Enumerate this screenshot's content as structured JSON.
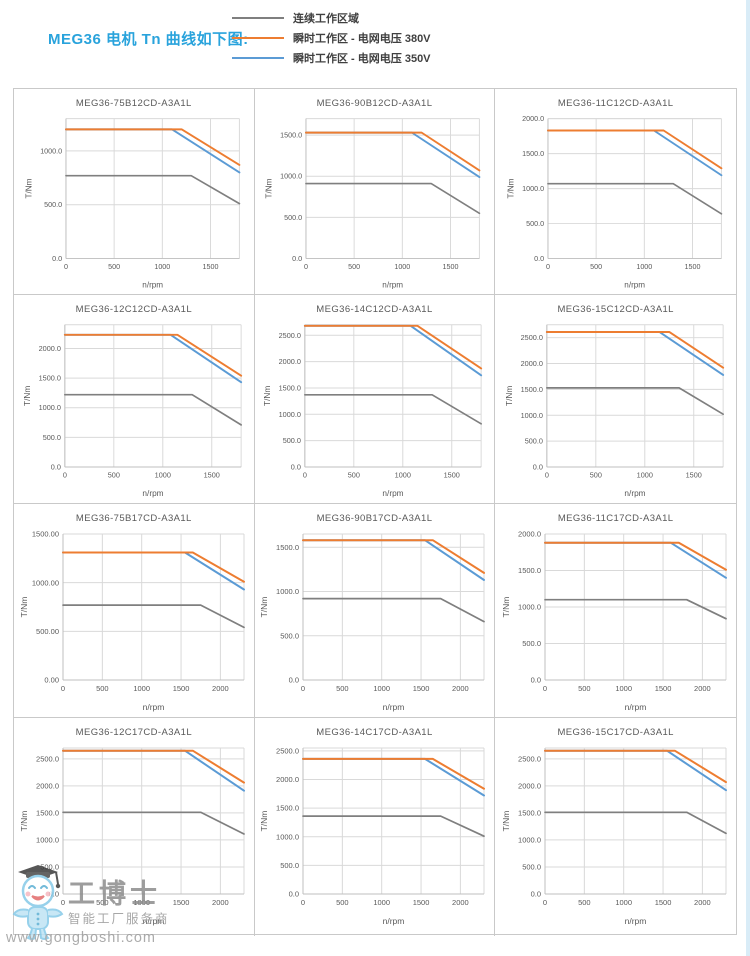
{
  "page": {
    "title": "MEG36 电机 Tn 曲线如下图:",
    "title_color": "#29a3dc"
  },
  "legend": {
    "items": [
      {
        "label": "连续工作区域",
        "color": "#7f7f7f",
        "key": "cont"
      },
      {
        "label": "瞬时工作区 - 电网电压 380V",
        "color": "#ed7d31",
        "key": "v380"
      },
      {
        "label": "瞬时工作区 - 电网电压 350V",
        "color": "#5b9bd5",
        "key": "v350"
      }
    ]
  },
  "watermark": {
    "brand": "工博士",
    "tagline": "智能工厂服务商",
    "url": "www.gongboshi.com"
  },
  "chart_defaults": {
    "type": "line",
    "xlabel": "n/rpm",
    "ylabel": "T/Nm",
    "grid": true,
    "legend_position": "none",
    "colors": {
      "cont": "#7f7f7f",
      "v380": "#ed7d31",
      "v350": "#5b9bd5"
    }
  },
  "chart_data": [
    {
      "type": "line",
      "title": "MEG36-75B12CD-A3A1L",
      "xlabel": "n/rpm",
      "ylabel": "T/Nm",
      "xlim": [
        0,
        1800
      ],
      "ylim": [
        0,
        1300
      ],
      "xticks": [
        0,
        500,
        1000,
        1500
      ],
      "yticks": [
        0,
        500,
        1000
      ],
      "ytick_decimals": 1,
      "series": [
        {
          "key": "cont",
          "name": "连续工作区域",
          "points": [
            [
              0,
              770
            ],
            [
              1300,
              770
            ],
            [
              1800,
              510
            ]
          ]
        },
        {
          "key": "v380",
          "name": "瞬时工作区 - 电网电压 380V",
          "points": [
            [
              0,
              1200
            ],
            [
              1200,
              1200
            ],
            [
              1800,
              870
            ]
          ]
        },
        {
          "key": "v350",
          "name": "瞬时工作区 - 电网电压 350V",
          "points": [
            [
              0,
              1200
            ],
            [
              1100,
              1200
            ],
            [
              1800,
              800
            ]
          ]
        }
      ]
    },
    {
      "type": "line",
      "title": "MEG36-90B12CD-A3A1L",
      "xlabel": "n/rpm",
      "ylabel": "T/Nm",
      "xlim": [
        0,
        1800
      ],
      "ylim": [
        0,
        1700
      ],
      "xticks": [
        0,
        500,
        1000,
        1500
      ],
      "yticks": [
        0,
        500,
        1000,
        1500
      ],
      "ytick_decimals": 1,
      "series": [
        {
          "key": "cont",
          "name": "连续工作区域",
          "points": [
            [
              0,
              910
            ],
            [
              1300,
              910
            ],
            [
              1800,
              550
            ]
          ]
        },
        {
          "key": "v380",
          "name": "瞬时工作区 - 电网电压 380V",
          "points": [
            [
              0,
              1530
            ],
            [
              1200,
              1530
            ],
            [
              1800,
              1070
            ]
          ]
        },
        {
          "key": "v350",
          "name": "瞬时工作区 - 电网电压 350V",
          "points": [
            [
              0,
              1530
            ],
            [
              1100,
              1530
            ],
            [
              1800,
              990
            ]
          ]
        }
      ]
    },
    {
      "type": "line",
      "title": "MEG36-11C12CD-A3A1L",
      "xlabel": "n/rpm",
      "ylabel": "T/Nm",
      "xlim": [
        0,
        1800
      ],
      "ylim": [
        0,
        2000
      ],
      "xticks": [
        0,
        500,
        1000,
        1500
      ],
      "yticks": [
        0,
        500,
        1000,
        1500,
        2000
      ],
      "ytick_decimals": 1,
      "series": [
        {
          "key": "cont",
          "name": "连续工作区域",
          "points": [
            [
              0,
              1070
            ],
            [
              1300,
              1070
            ],
            [
              1800,
              640
            ]
          ]
        },
        {
          "key": "v380",
          "name": "瞬时工作区 - 电网电压 380V",
          "points": [
            [
              0,
              1830
            ],
            [
              1200,
              1830
            ],
            [
              1800,
              1290
            ]
          ]
        },
        {
          "key": "v350",
          "name": "瞬时工作区 - 电网电压 350V",
          "points": [
            [
              0,
              1830
            ],
            [
              1100,
              1830
            ],
            [
              1800,
              1190
            ]
          ]
        }
      ]
    },
    {
      "type": "line",
      "title": "MEG36-12C12CD-A3A1L",
      "xlabel": "n/rpm",
      "ylabel": "T/Nm",
      "xlim": [
        0,
        1800
      ],
      "ylim": [
        0,
        2400
      ],
      "xticks": [
        0,
        500,
        1000,
        1500
      ],
      "yticks": [
        0,
        500,
        1000,
        1500,
        2000
      ],
      "ytick_decimals": 1,
      "series": [
        {
          "key": "cont",
          "name": "连续工作区域",
          "points": [
            [
              0,
              1220
            ],
            [
              1300,
              1220
            ],
            [
              1800,
              710
            ]
          ]
        },
        {
          "key": "v380",
          "name": "瞬时工作区 - 电网电压 380V",
          "points": [
            [
              0,
              2230
            ],
            [
              1150,
              2230
            ],
            [
              1800,
              1540
            ]
          ]
        },
        {
          "key": "v350",
          "name": "瞬时工作区 - 电网电压 350V",
          "points": [
            [
              0,
              2230
            ],
            [
              1080,
              2230
            ],
            [
              1800,
              1430
            ]
          ]
        }
      ]
    },
    {
      "type": "line",
      "title": "MEG36-14C12CD-A3A1L",
      "xlabel": "n/rpm",
      "ylabel": "T/Nm",
      "xlim": [
        0,
        1800
      ],
      "ylim": [
        0,
        2700
      ],
      "xticks": [
        0,
        500,
        1000,
        1500
      ],
      "yticks": [
        0,
        500,
        1000,
        1500,
        2000,
        2500
      ],
      "ytick_decimals": 1,
      "series": [
        {
          "key": "cont",
          "name": "连续工作区域",
          "points": [
            [
              0,
              1370
            ],
            [
              1300,
              1370
            ],
            [
              1800,
              820
            ]
          ]
        },
        {
          "key": "v380",
          "name": "瞬时工作区 - 电网电压 380V",
          "points": [
            [
              0,
              2680
            ],
            [
              1150,
              2680
            ],
            [
              1800,
              1870
            ]
          ]
        },
        {
          "key": "v350",
          "name": "瞬时工作区 - 电网电压 350V",
          "points": [
            [
              0,
              2680
            ],
            [
              1080,
              2680
            ],
            [
              1800,
              1740
            ]
          ]
        }
      ]
    },
    {
      "type": "line",
      "title": "MEG36-15C12CD-A3A1L",
      "xlabel": "n/rpm",
      "ylabel": "T/Nm",
      "xlim": [
        0,
        1800
      ],
      "ylim": [
        0,
        2750
      ],
      "xticks": [
        0,
        500,
        1000,
        1500
      ],
      "yticks": [
        0,
        500,
        1000,
        1500,
        2000,
        2500
      ],
      "ytick_decimals": 1,
      "series": [
        {
          "key": "cont",
          "name": "连续工作区域",
          "points": [
            [
              0,
              1530
            ],
            [
              1350,
              1530
            ],
            [
              1800,
              1020
            ]
          ]
        },
        {
          "key": "v380",
          "name": "瞬时工作区 - 电网电压 380V",
          "points": [
            [
              0,
              2610
            ],
            [
              1250,
              2610
            ],
            [
              1800,
              1920
            ]
          ]
        },
        {
          "key": "v350",
          "name": "瞬时工作区 - 电网电压 350V",
          "points": [
            [
              0,
              2610
            ],
            [
              1150,
              2610
            ],
            [
              1800,
              1780
            ]
          ]
        }
      ]
    },
    {
      "type": "line",
      "title": "MEG36-75B17CD-A3A1L",
      "xlabel": "n/rpm",
      "ylabel": "T/Nm",
      "xlim": [
        0,
        2300
      ],
      "ylim": [
        0,
        1500
      ],
      "xticks": [
        0,
        500,
        1000,
        1500,
        2000
      ],
      "yticks": [
        0,
        500,
        1000,
        1500
      ],
      "ytick_decimals": 2,
      "series": [
        {
          "key": "cont",
          "name": "连续工作区域",
          "points": [
            [
              0,
              770
            ],
            [
              1750,
              770
            ],
            [
              2300,
              540
            ]
          ]
        },
        {
          "key": "v380",
          "name": "瞬时工作区 - 电网电压 380V",
          "points": [
            [
              0,
              1310
            ],
            [
              1650,
              1310
            ],
            [
              2300,
              1010
            ]
          ]
        },
        {
          "key": "v350",
          "name": "瞬时工作区 - 电网电压 350V",
          "points": [
            [
              0,
              1310
            ],
            [
              1550,
              1310
            ],
            [
              2300,
              930
            ]
          ]
        }
      ]
    },
    {
      "type": "line",
      "title": "MEG36-90B17CD-A3A1L",
      "xlabel": "n/rpm",
      "ylabel": "T/Nm",
      "xlim": [
        0,
        2300
      ],
      "ylim": [
        0,
        1650
      ],
      "xticks": [
        0,
        500,
        1000,
        1500,
        2000
      ],
      "yticks": [
        0,
        500,
        1000,
        1500
      ],
      "ytick_decimals": 1,
      "series": [
        {
          "key": "cont",
          "name": "连续工作区域",
          "points": [
            [
              0,
              920
            ],
            [
              1750,
              920
            ],
            [
              2300,
              660
            ]
          ]
        },
        {
          "key": "v380",
          "name": "瞬时工作区 - 电网电压 380V",
          "points": [
            [
              0,
              1580
            ],
            [
              1650,
              1580
            ],
            [
              2300,
              1210
            ]
          ]
        },
        {
          "key": "v350",
          "name": "瞬时工作区 - 电网电压 350V",
          "points": [
            [
              0,
              1580
            ],
            [
              1550,
              1580
            ],
            [
              2300,
              1130
            ]
          ]
        }
      ]
    },
    {
      "type": "line",
      "title": "MEG36-11C17CD-A3A1L",
      "xlabel": "n/rpm",
      "ylabel": "T/Nm",
      "xlim": [
        0,
        2300
      ],
      "ylim": [
        0,
        2000
      ],
      "xticks": [
        0,
        500,
        1000,
        1500,
        2000
      ],
      "yticks": [
        0,
        500,
        1000,
        1500,
        2000
      ],
      "ytick_decimals": 1,
      "series": [
        {
          "key": "cont",
          "name": "连续工作区域",
          "points": [
            [
              0,
              1100
            ],
            [
              1800,
              1100
            ],
            [
              2300,
              840
            ]
          ]
        },
        {
          "key": "v380",
          "name": "瞬时工作区 - 电网电压 380V",
          "points": [
            [
              0,
              1880
            ],
            [
              1700,
              1880
            ],
            [
              2300,
              1510
            ]
          ]
        },
        {
          "key": "v350",
          "name": "瞬时工作区 - 电网电压 350V",
          "points": [
            [
              0,
              1880
            ],
            [
              1600,
              1880
            ],
            [
              2300,
              1400
            ]
          ]
        }
      ]
    },
    {
      "type": "line",
      "title": "MEG36-12C17CD-A3A1L",
      "xlabel": "n/rpm",
      "ylabel": "T/Nm",
      "xlim": [
        0,
        2300
      ],
      "ylim": [
        0,
        2700
      ],
      "xticks": [
        0,
        500,
        1000,
        1500,
        2000
      ],
      "yticks": [
        0,
        500,
        1000,
        1500,
        2000,
        2500
      ],
      "ytick_decimals": 1,
      "series": [
        {
          "key": "cont",
          "name": "连续工作区域",
          "points": [
            [
              0,
              1510
            ],
            [
              1750,
              1510
            ],
            [
              2300,
              1110
            ]
          ]
        },
        {
          "key": "v380",
          "name": "瞬时工作区 - 电网电压 380V",
          "points": [
            [
              0,
              2650
            ],
            [
              1650,
              2650
            ],
            [
              2300,
              2060
            ]
          ]
        },
        {
          "key": "v350",
          "name": "瞬时工作区 - 电网电压 350V",
          "points": [
            [
              0,
              2650
            ],
            [
              1550,
              2650
            ],
            [
              2300,
              1910
            ]
          ]
        }
      ]
    },
    {
      "type": "line",
      "title": "MEG36-14C17CD-A3A1L",
      "xlabel": "n/rpm",
      "ylabel": "T/Nm",
      "xlim": [
        0,
        2300
      ],
      "ylim": [
        0,
        2550
      ],
      "xticks": [
        0,
        500,
        1000,
        1500,
        2000
      ],
      "yticks": [
        0,
        500,
        1000,
        1500,
        2000,
        2500
      ],
      "ytick_decimals": 1,
      "series": [
        {
          "key": "cont",
          "name": "连续工作区域",
          "points": [
            [
              0,
              1360
            ],
            [
              1750,
              1360
            ],
            [
              2300,
              1010
            ]
          ]
        },
        {
          "key": "v380",
          "name": "瞬时工作区 - 电网电压 380V",
          "points": [
            [
              0,
              2360
            ],
            [
              1650,
              2360
            ],
            [
              2300,
              1840
            ]
          ]
        },
        {
          "key": "v350",
          "name": "瞬时工作区 - 电网电压 350V",
          "points": [
            [
              0,
              2360
            ],
            [
              1550,
              2360
            ],
            [
              2300,
              1720
            ]
          ]
        }
      ]
    },
    {
      "type": "line",
      "title": "MEG36-15C17CD-A3A1L",
      "xlabel": "n/rpm",
      "ylabel": "T/Nm",
      "xlim": [
        0,
        2300
      ],
      "ylim": [
        0,
        2700
      ],
      "xticks": [
        0,
        500,
        1000,
        1500,
        2000
      ],
      "yticks": [
        0,
        500,
        1000,
        1500,
        2000,
        2500
      ],
      "ytick_decimals": 1,
      "series": [
        {
          "key": "cont",
          "name": "连续工作区域",
          "points": [
            [
              0,
              1510
            ],
            [
              1800,
              1510
            ],
            [
              2300,
              1120
            ]
          ]
        },
        {
          "key": "v380",
          "name": "瞬时工作区 - 电网电压 380V",
          "points": [
            [
              0,
              2650
            ],
            [
              1650,
              2650
            ],
            [
              2300,
              2070
            ]
          ]
        },
        {
          "key": "v350",
          "name": "瞬时工作区 - 电网电压 350V",
          "points": [
            [
              0,
              2650
            ],
            [
              1550,
              2650
            ],
            [
              2300,
              1920
            ]
          ]
        }
      ]
    }
  ]
}
